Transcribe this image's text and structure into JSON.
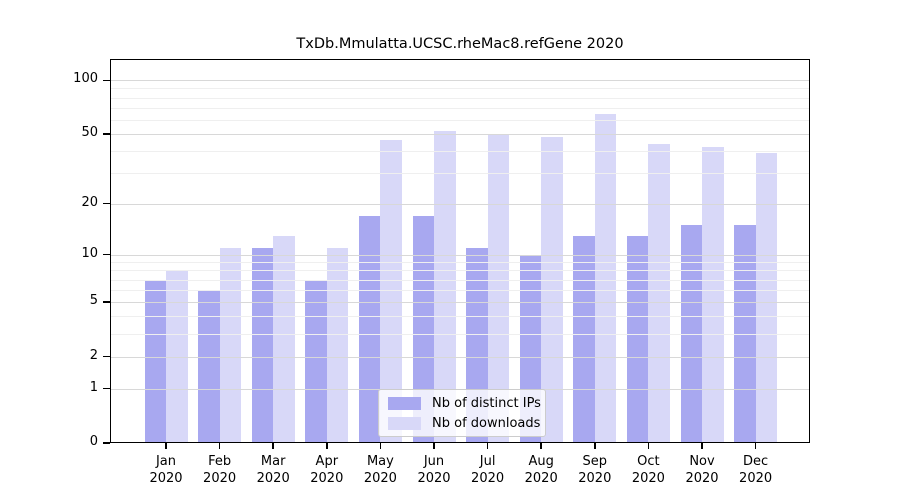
{
  "title": "TxDb.Mmulatta.UCSC.rheMac8.refGene 2020",
  "chart_data": {
    "type": "bar",
    "categories": [
      "Jan",
      "Feb",
      "Mar",
      "Apr",
      "May",
      "Jun",
      "Jul",
      "Aug",
      "Sep",
      "Oct",
      "Nov",
      "Dec"
    ],
    "year": "2020",
    "series": [
      {
        "name": "Nb of distinct IPs",
        "color": "#a8a8f0",
        "values": [
          7,
          6,
          11,
          7,
          17,
          17,
          11,
          10,
          13,
          13,
          15,
          15
        ]
      },
      {
        "name": "Nb of downloads",
        "color": "#d8d8f8",
        "values": [
          8,
          11,
          13,
          11,
          46,
          52,
          50,
          48,
          65,
          44,
          42,
          39
        ]
      }
    ],
    "yscale": "log1p",
    "yticks": [
      0,
      1,
      2,
      5,
      10,
      20,
      50,
      100
    ],
    "minor_yticks": [
      3,
      4,
      6,
      7,
      8,
      9,
      30,
      40,
      60,
      70,
      80,
      90
    ],
    "ylim": [
      0,
      130
    ],
    "grid": true,
    "legend_position": "lower center",
    "colors": {
      "major_grid": "#d8d8d8",
      "minor_grid": "#efefef",
      "spine": "#000000",
      "background": "#ffffff"
    }
  }
}
